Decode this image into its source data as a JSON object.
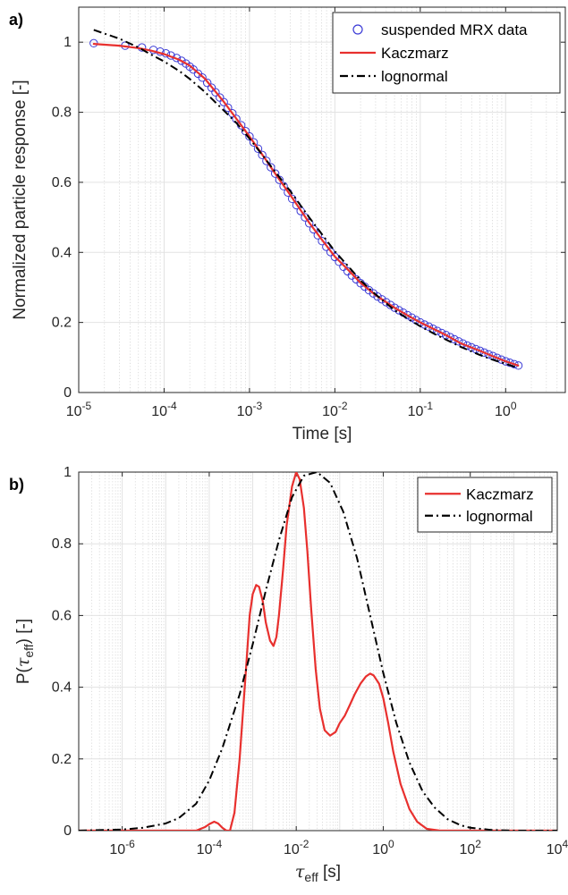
{
  "chart_data": [
    {
      "panel_label": "a)",
      "type": "line",
      "xscale": "log",
      "yscale": "linear",
      "xlim": [
        1e-05,
        5
      ],
      "ylim": [
        0,
        1.1
      ],
      "xlabel": "Time [s]",
      "ylabel": "Normalized particle response [-]",
      "grid": "on (major and minor)",
      "legend_position": "top-right",
      "x_ticks": [
        {
          "value": 1e-05,
          "base": "10",
          "exp": "-5"
        },
        {
          "value": 0.0001,
          "base": "10",
          "exp": "-4"
        },
        {
          "value": 0.001,
          "base": "10",
          "exp": "-3"
        },
        {
          "value": 0.01,
          "base": "10",
          "exp": "-2"
        },
        {
          "value": 0.1,
          "base": "10",
          "exp": "-1"
        },
        {
          "value": 1,
          "base": "10",
          "exp": "0"
        }
      ],
      "y_ticks": [
        {
          "value": 0,
          "label": "0"
        },
        {
          "value": 0.2,
          "label": "0.2"
        },
        {
          "value": 0.4,
          "label": "0.4"
        },
        {
          "value": 0.6,
          "label": "0.6"
        },
        {
          "value": 0.8,
          "label": "0.8"
        },
        {
          "value": 1,
          "label": "1"
        }
      ],
      "series": [
        {
          "name": "suspended MRX data",
          "style": "markers",
          "marker": "circle",
          "color": "#3a3ad6",
          "x": [
            1.5e-05,
            3.5e-05,
            5.5e-05,
            7.5e-05,
            9e-05,
            0.000105,
            0.00012,
            0.00014,
            0.00016,
            0.00018,
            0.0002,
            0.00022,
            0.00025,
            0.00028,
            0.00032,
            0.00036,
            0.0004,
            0.00045,
            0.0005,
            0.00056,
            0.00063,
            0.0007,
            0.0008,
            0.0009,
            0.001,
            0.00112,
            0.00126,
            0.00141,
            0.00158,
            0.00178,
            0.002,
            0.00224,
            0.00251,
            0.00282,
            0.00316,
            0.00355,
            0.00398,
            0.00447,
            0.00501,
            0.00562,
            0.00631,
            0.00708,
            0.00794,
            0.00891,
            0.01,
            0.0112,
            0.0126,
            0.0141,
            0.0158,
            0.0178,
            0.02,
            0.0224,
            0.0251,
            0.0282,
            0.0316,
            0.0355,
            0.0398,
            0.0447,
            0.0501,
            0.0562,
            0.0631,
            0.0708,
            0.0794,
            0.0891,
            0.1,
            0.112,
            0.126,
            0.141,
            0.158,
            0.178,
            0.2,
            0.224,
            0.251,
            0.282,
            0.316,
            0.355,
            0.398,
            0.447,
            0.501,
            0.562,
            0.631,
            0.708,
            0.794,
            0.891,
            1.0,
            1.12,
            1.26,
            1.41
          ],
          "y": [
            0.997,
            0.99,
            0.985,
            0.978,
            0.973,
            0.968,
            0.962,
            0.955,
            0.947,
            0.939,
            0.93,
            0.922,
            0.91,
            0.899,
            0.884,
            0.87,
            0.857,
            0.842,
            0.829,
            0.813,
            0.797,
            0.781,
            0.763,
            0.746,
            0.731,
            0.714,
            0.696,
            0.678,
            0.661,
            0.643,
            0.625,
            0.607,
            0.589,
            0.571,
            0.553,
            0.535,
            0.518,
            0.5,
            0.483,
            0.466,
            0.449,
            0.432,
            0.416,
            0.401,
            0.387,
            0.373,
            0.359,
            0.346,
            0.334,
            0.323,
            0.312,
            0.302,
            0.292,
            0.283,
            0.274,
            0.266,
            0.258,
            0.25,
            0.242,
            0.235,
            0.228,
            0.221,
            0.214,
            0.207,
            0.2,
            0.194,
            0.188,
            0.182,
            0.176,
            0.17,
            0.164,
            0.158,
            0.152,
            0.146,
            0.14,
            0.134,
            0.129,
            0.124,
            0.119,
            0.114,
            0.109,
            0.104,
            0.099,
            0.094,
            0.089,
            0.085,
            0.081,
            0.077
          ]
        },
        {
          "name": "Kaczmarz",
          "style": "solid",
          "color": "#e8302e",
          "x": [
            1.5e-05,
            3e-05,
            5e-05,
            7e-05,
            0.0001,
            0.00015,
            0.0002,
            0.0003,
            0.0005,
            0.0007,
            0.001,
            0.0015,
            0.002,
            0.003,
            0.005,
            0.007,
            0.01,
            0.015,
            0.02,
            0.03,
            0.05,
            0.07,
            0.1,
            0.15,
            0.2,
            0.3,
            0.5,
            0.7,
            1.0,
            1.4
          ],
          "y": [
            0.995,
            0.99,
            0.983,
            0.976,
            0.966,
            0.95,
            0.933,
            0.896,
            0.83,
            0.782,
            0.731,
            0.67,
            0.625,
            0.564,
            0.485,
            0.437,
            0.388,
            0.345,
            0.313,
            0.278,
            0.242,
            0.221,
            0.2,
            0.179,
            0.164,
            0.14,
            0.119,
            0.104,
            0.089,
            0.077
          ]
        },
        {
          "name": "lognormal",
          "style": "dashdot",
          "color": "#000000",
          "x": [
            1.5e-05,
            3e-05,
            5e-05,
            7e-05,
            0.0001,
            0.00015,
            0.0002,
            0.0003,
            0.0005,
            0.0007,
            0.001,
            0.0015,
            0.002,
            0.003,
            0.005,
            0.007,
            0.01,
            0.015,
            0.02,
            0.03,
            0.05,
            0.07,
            0.1,
            0.15,
            0.2,
            0.3,
            0.5,
            0.7,
            1.0,
            1.4
          ],
          "y": [
            1.035,
            1.01,
            0.985,
            0.965,
            0.945,
            0.918,
            0.895,
            0.858,
            0.805,
            0.77,
            0.725,
            0.67,
            0.63,
            0.575,
            0.5,
            0.453,
            0.403,
            0.355,
            0.32,
            0.28,
            0.235,
            0.212,
            0.189,
            0.166,
            0.151,
            0.13,
            0.107,
            0.094,
            0.082,
            0.07
          ]
        }
      ]
    },
    {
      "panel_label": "b)",
      "type": "line",
      "xscale": "log",
      "yscale": "linear",
      "xlim": [
        1e-07,
        10000
      ],
      "ylim": [
        0,
        1
      ],
      "xlabel": "τ",
      "xlabel_sub": "eff",
      "xlabel_unit": " [s]",
      "ylabel": "P(τ",
      "ylabel_sub": "eff",
      "ylabel_unit": ") [-]",
      "grid": "on (major and minor)",
      "legend_position": "top-right",
      "x_ticks": [
        {
          "value": 1e-06,
          "base": "10",
          "exp": "-6"
        },
        {
          "value": 0.0001,
          "base": "10",
          "exp": "-4"
        },
        {
          "value": 0.01,
          "base": "10",
          "exp": "-2"
        },
        {
          "value": 1,
          "base": "10",
          "exp": "0"
        },
        {
          "value": 100,
          "base": "10",
          "exp": "2"
        },
        {
          "value": 10000,
          "base": "10",
          "exp": "4"
        }
      ],
      "y_ticks": [
        {
          "value": 0,
          "label": "0"
        },
        {
          "value": 0.2,
          "label": "0.2"
        },
        {
          "value": 0.4,
          "label": "0.4"
        },
        {
          "value": 0.6,
          "label": "0.6"
        },
        {
          "value": 0.8,
          "label": "0.8"
        },
        {
          "value": 1,
          "label": "1"
        }
      ],
      "series": [
        {
          "name": "Kaczmarz",
          "style": "solid",
          "color": "#e8302e",
          "x": [
            1e-07,
            5e-05,
            8e-05,
            0.0001,
            0.00013,
            0.00016,
            0.0002,
            0.00025,
            0.0003,
            0.00038,
            0.0005,
            0.0007,
            0.00085,
            0.001,
            0.0012,
            0.0014,
            0.0017,
            0.002,
            0.0025,
            0.003,
            0.0035,
            0.004,
            0.005,
            0.006,
            0.008,
            0.01,
            0.012,
            0.015,
            0.018,
            0.022,
            0.028,
            0.035,
            0.045,
            0.06,
            0.08,
            0.1,
            0.13,
            0.17,
            0.22,
            0.3,
            0.4,
            0.5,
            0.6,
            0.8,
            1.0,
            1.3,
            1.7,
            2.5,
            4,
            6,
            10,
            20,
            40,
            100,
            10000
          ],
          "y": [
            0.0,
            0.0,
            0.01,
            0.018,
            0.025,
            0.02,
            0.008,
            0.0,
            0.0,
            0.05,
            0.2,
            0.45,
            0.6,
            0.66,
            0.685,
            0.68,
            0.64,
            0.58,
            0.53,
            0.515,
            0.54,
            0.6,
            0.73,
            0.85,
            0.96,
            1.0,
            0.98,
            0.9,
            0.78,
            0.62,
            0.45,
            0.34,
            0.28,
            0.265,
            0.275,
            0.3,
            0.32,
            0.35,
            0.38,
            0.41,
            0.43,
            0.438,
            0.433,
            0.41,
            0.37,
            0.3,
            0.22,
            0.13,
            0.06,
            0.025,
            0.005,
            0.0,
            0.0,
            0.0,
            0.0
          ]
        },
        {
          "name": "lognormal",
          "style": "dashdot",
          "color": "#000000",
          "x": [
            1e-07,
            1e-06,
            3e-06,
            1e-05,
            2e-05,
            5e-05,
            0.0001,
            0.0002,
            0.0005,
            0.001,
            0.002,
            0.004,
            0.008,
            0.015,
            0.03,
            0.06,
            0.12,
            0.25,
            0.5,
            1,
            2,
            4,
            8,
            15,
            30,
            60,
            100,
            300,
            1000,
            10000
          ],
          "y": [
            0.0,
            0.003,
            0.008,
            0.02,
            0.035,
            0.075,
            0.14,
            0.23,
            0.38,
            0.52,
            0.67,
            0.81,
            0.93,
            0.99,
            1.0,
            0.97,
            0.89,
            0.76,
            0.6,
            0.44,
            0.3,
            0.19,
            0.11,
            0.065,
            0.032,
            0.015,
            0.008,
            0.002,
            0.0,
            0.0
          ]
        }
      ]
    }
  ]
}
